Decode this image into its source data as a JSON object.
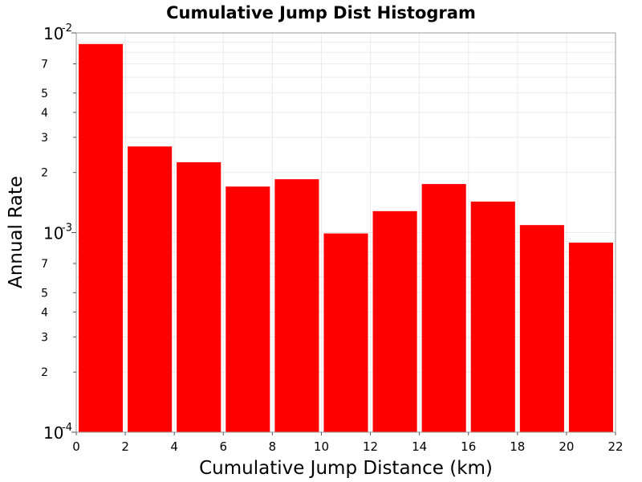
{
  "chart_data": {
    "type": "bar",
    "title": "Cumulative Jump Dist Histogram",
    "xlabel": "Cumulative Jump Distance (km)",
    "ylabel": "Annual Rate",
    "yscale": "log",
    "xlim": [
      0,
      22
    ],
    "ylim": [
      0.0001,
      0.01
    ],
    "grid": true,
    "bar_color": "#ff0000",
    "bin_width": 2,
    "x": [
      1,
      3,
      5,
      7,
      9,
      11,
      13,
      15,
      17,
      19,
      21
    ],
    "values": [
      0.0088,
      0.0027,
      0.00225,
      0.0017,
      0.00185,
      0.00099,
      0.00128,
      0.00175,
      0.00143,
      0.00109,
      0.00089
    ],
    "x_ticks": [
      0,
      2,
      4,
      6,
      8,
      10,
      12,
      14,
      16,
      18,
      20,
      22
    ],
    "y_major_ticks": [
      {
        "value": 0.01,
        "base": "10",
        "exp": "-2"
      },
      {
        "value": 0.001,
        "base": "10",
        "exp": "-3"
      },
      {
        "value": 0.0001,
        "base": "10",
        "exp": "-4"
      }
    ],
    "y_minor_labels": [
      {
        "value": 0.007,
        "label": "7"
      },
      {
        "value": 0.005,
        "label": "5"
      },
      {
        "value": 0.004,
        "label": "4"
      },
      {
        "value": 0.003,
        "label": "3"
      },
      {
        "value": 0.002,
        "label": "2"
      },
      {
        "value": 0.0007,
        "label": "7"
      },
      {
        "value": 0.0005,
        "label": "5"
      },
      {
        "value": 0.0004,
        "label": "4"
      },
      {
        "value": 0.0003,
        "label": "3"
      },
      {
        "value": 0.0002,
        "label": "2"
      }
    ]
  }
}
